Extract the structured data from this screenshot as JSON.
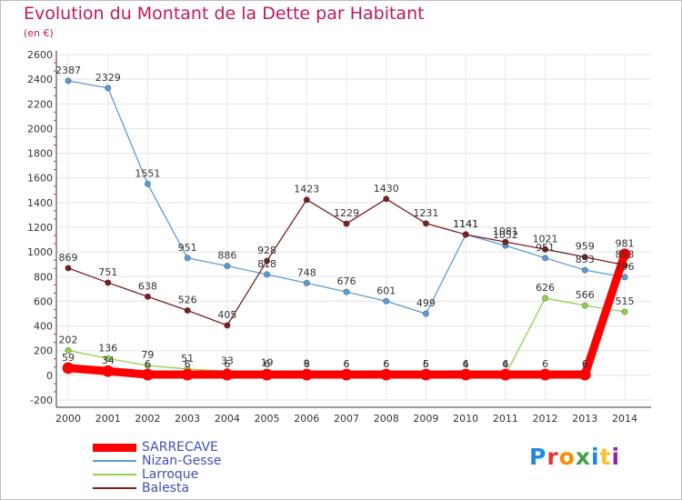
{
  "title": "Evolution du Montant de la Dette par Habitant",
  "subtitle": "(en €)",
  "logo_text": "Proxiti",
  "chart_data": {
    "type": "line",
    "title": "Evolution du Montant de la Dette par Habitant",
    "subtitle": "(en €)",
    "xlabel": "",
    "ylabel": "",
    "ylim": [
      -200,
      2600
    ],
    "yticks": [
      -200,
      0,
      200,
      400,
      600,
      800,
      1000,
      1200,
      1400,
      1600,
      1800,
      2000,
      2200,
      2400,
      2600
    ],
    "categories": [
      "2000",
      "2001",
      "2002",
      "2003",
      "2004",
      "2005",
      "2006",
      "2007",
      "2008",
      "2009",
      "2010",
      "2011",
      "2012",
      "2013",
      "2014"
    ],
    "grid": true,
    "legend_position": "bottom-left",
    "series": [
      {
        "name": "Nizan-Gesse",
        "color": "#5b9bd5",
        "values": [
          2387,
          2329,
          1551,
          951,
          886,
          818,
          748,
          676,
          601,
          499,
          1141,
          1052,
          951,
          853,
          796
        ]
      },
      {
        "name": "Larroque",
        "color": "#92d050",
        "values": [
          202,
          136,
          79,
          51,
          33,
          19,
          9,
          6,
          6,
          5,
          4,
          4,
          626,
          566,
          515
        ]
      },
      {
        "name": "Balesta",
        "color": "#7b1f1f",
        "values": [
          869,
          751,
          638,
          526,
          405,
          928,
          1423,
          1229,
          1430,
          1231,
          1141,
          1081,
          1021,
          959,
          893
        ]
      },
      {
        "name": "SARRECAVE",
        "color": "#ff0000",
        "values": [
          59,
          34,
          6,
          6,
          6,
          6,
          6,
          6,
          6,
          6,
          6,
          6,
          6,
          6,
          981
        ]
      }
    ]
  }
}
